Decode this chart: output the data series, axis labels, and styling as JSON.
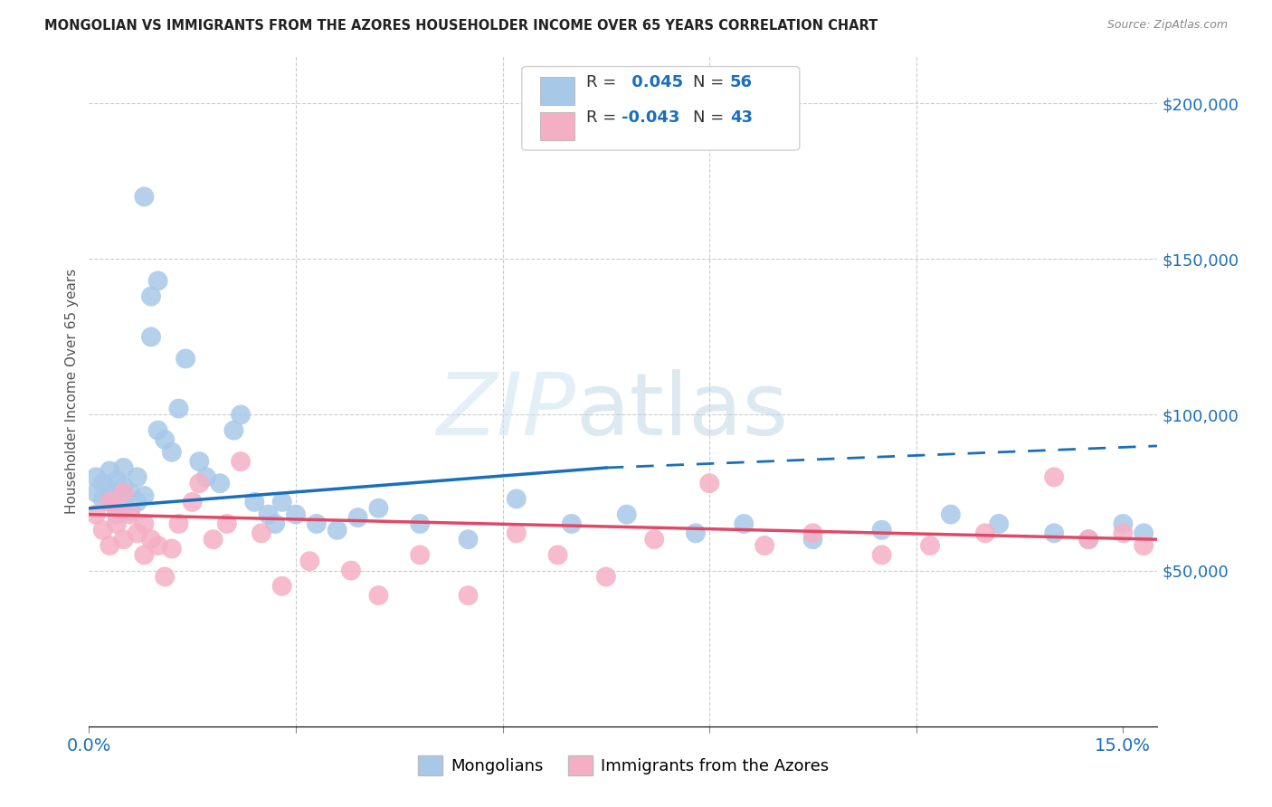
{
  "title": "MONGOLIAN VS IMMIGRANTS FROM THE AZORES HOUSEHOLDER INCOME OVER 65 YEARS CORRELATION CHART",
  "source": "Source: ZipAtlas.com",
  "ylabel": "Householder Income Over 65 years",
  "xlim": [
    0.0,
    0.155
  ],
  "ylim": [
    0,
    215000
  ],
  "r_mongolian": 0.045,
  "n_mongolian": 56,
  "r_azores": -0.043,
  "n_azores": 43,
  "legend_label_1": "Mongolians",
  "legend_label_2": "Immigrants from the Azores",
  "mongolian_color": "#a8c8e8",
  "azores_color": "#f5afc5",
  "mongolian_line_color": "#1a6fba",
  "azores_line_color": "#e04868",
  "background_color": "#ffffff",
  "mongolian_x": [
    0.001,
    0.001,
    0.002,
    0.002,
    0.003,
    0.003,
    0.003,
    0.004,
    0.004,
    0.004,
    0.005,
    0.005,
    0.005,
    0.006,
    0.006,
    0.007,
    0.007,
    0.008,
    0.008,
    0.009,
    0.009,
    0.01,
    0.01,
    0.011,
    0.012,
    0.013,
    0.014,
    0.016,
    0.017,
    0.019,
    0.021,
    0.022,
    0.024,
    0.026,
    0.027,
    0.028,
    0.03,
    0.033,
    0.036,
    0.039,
    0.042,
    0.048,
    0.055,
    0.062,
    0.07,
    0.078,
    0.088,
    0.095,
    0.105,
    0.115,
    0.125,
    0.132,
    0.14,
    0.145,
    0.15,
    0.153
  ],
  "mongolian_y": [
    75000,
    80000,
    73000,
    78000,
    72000,
    76000,
    82000,
    68000,
    74000,
    79000,
    71000,
    77000,
    83000,
    69000,
    75000,
    72000,
    80000,
    74000,
    170000,
    125000,
    138000,
    143000,
    95000,
    92000,
    88000,
    102000,
    118000,
    85000,
    80000,
    78000,
    95000,
    100000,
    72000,
    68000,
    65000,
    72000,
    68000,
    65000,
    63000,
    67000,
    70000,
    65000,
    60000,
    73000,
    65000,
    68000,
    62000,
    65000,
    60000,
    63000,
    68000,
    65000,
    62000,
    60000,
    65000,
    62000
  ],
  "azores_x": [
    0.001,
    0.002,
    0.003,
    0.003,
    0.004,
    0.004,
    0.005,
    0.005,
    0.006,
    0.007,
    0.008,
    0.008,
    0.009,
    0.01,
    0.011,
    0.012,
    0.013,
    0.015,
    0.016,
    0.018,
    0.02,
    0.022,
    0.025,
    0.028,
    0.032,
    0.038,
    0.042,
    0.048,
    0.055,
    0.062,
    0.068,
    0.075,
    0.082,
    0.09,
    0.098,
    0.105,
    0.115,
    0.122,
    0.13,
    0.14,
    0.145,
    0.15,
    0.153
  ],
  "azores_y": [
    68000,
    63000,
    58000,
    72000,
    65000,
    70000,
    60000,
    75000,
    68000,
    62000,
    55000,
    65000,
    60000,
    58000,
    48000,
    57000,
    65000,
    72000,
    78000,
    60000,
    65000,
    85000,
    62000,
    45000,
    53000,
    50000,
    42000,
    55000,
    42000,
    62000,
    55000,
    48000,
    60000,
    78000,
    58000,
    62000,
    55000,
    58000,
    62000,
    80000,
    60000,
    62000,
    58000
  ]
}
